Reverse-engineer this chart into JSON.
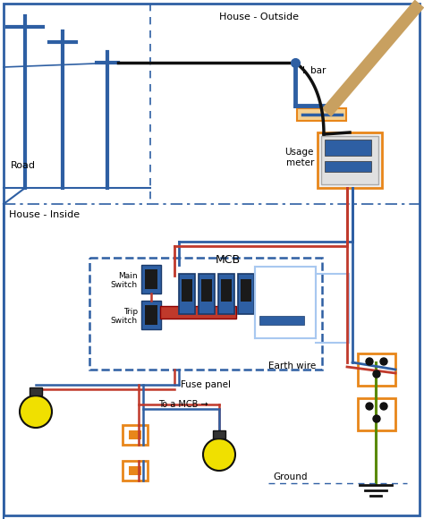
{
  "house_outside_label": "House - Outside",
  "house_inside_label": "House - Inside",
  "road_label": "Road",
  "lbar_label": "L bar",
  "usage_meter_label": "Usage\nmeter",
  "fuse_panel_label": "Fuse panel",
  "earth_wire_label": "Earth wire",
  "ground_label": "Ground",
  "main_switch_label": "Main\nSwitch",
  "trip_switch_label": "Trip\nSwitch",
  "mcb_label": "MCB",
  "to_mcb_label": "To a MCB →",
  "blue": "#2e5fa3",
  "red": "#c0392b",
  "black": "#111111",
  "green": "#5a8a00",
  "light_blue": "#a8c8f0",
  "orange": "#e8861a",
  "orange_fill": "#f5d090",
  "yellow": "#f0e000",
  "cable_tan": "#c8a060",
  "meter_gray": "#e8e8e8",
  "dark": "#1a1a1a",
  "white": "#ffffff"
}
